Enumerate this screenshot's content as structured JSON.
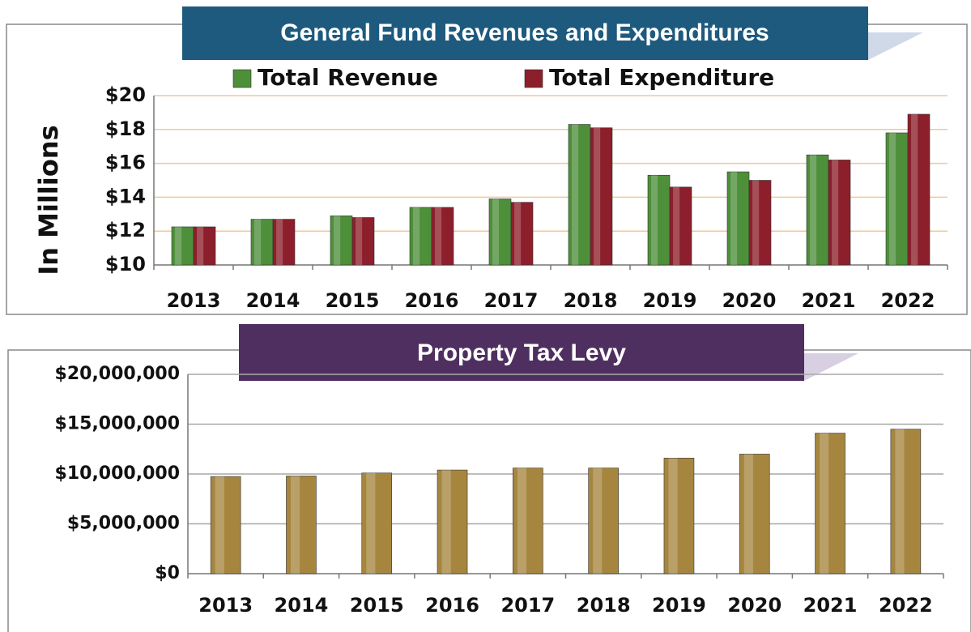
{
  "chart_data": [
    {
      "type": "bar",
      "title": "General Fund Revenues and Expenditures",
      "y_label": "In Millions",
      "categories": [
        "2013",
        "2014",
        "2015",
        "2016",
        "2017",
        "2018",
        "2019",
        "2020",
        "2021",
        "2022"
      ],
      "series": [
        {
          "name": "Total Revenue",
          "color": "#4e8f3a",
          "values": [
            12.25,
            12.7,
            12.9,
            13.4,
            13.9,
            18.3,
            15.3,
            15.5,
            16.5,
            17.8
          ]
        },
        {
          "name": "Total Expenditure",
          "color": "#8c1f2b",
          "values": [
            12.25,
            12.7,
            12.8,
            13.4,
            13.7,
            18.1,
            14.6,
            15.0,
            16.2,
            18.9
          ]
        }
      ],
      "ylim": [
        10,
        20
      ],
      "yticks": [
        {
          "value": 10,
          "label": "$10"
        },
        {
          "value": 12,
          "label": "$12"
        },
        {
          "value": 14,
          "label": "$14"
        },
        {
          "value": 16,
          "label": "$16"
        },
        {
          "value": 18,
          "label": "$18"
        },
        {
          "value": 20,
          "label": "$20"
        }
      ],
      "grid": true,
      "legend": "top"
    },
    {
      "type": "bar",
      "title": "Property Tax Levy",
      "categories": [
        "2013",
        "2014",
        "2015",
        "2016",
        "2017",
        "2018",
        "2019",
        "2020",
        "2021",
        "2022"
      ],
      "values": [
        9750000,
        9800000,
        10100000,
        10400000,
        10600000,
        10600000,
        11600000,
        12000000,
        14100000,
        14500000
      ],
      "color": "#a6863f",
      "ylim": [
        0,
        20000000
      ],
      "yticks": [
        {
          "value": 0,
          "label": "$0"
        },
        {
          "value": 5000000,
          "label": "$5,000,000"
        },
        {
          "value": 10000000,
          "label": "$10,000,000"
        },
        {
          "value": 15000000,
          "label": "$15,000,000"
        },
        {
          "value": 20000000,
          "label": "$20,000,000"
        }
      ],
      "grid": true
    }
  ]
}
